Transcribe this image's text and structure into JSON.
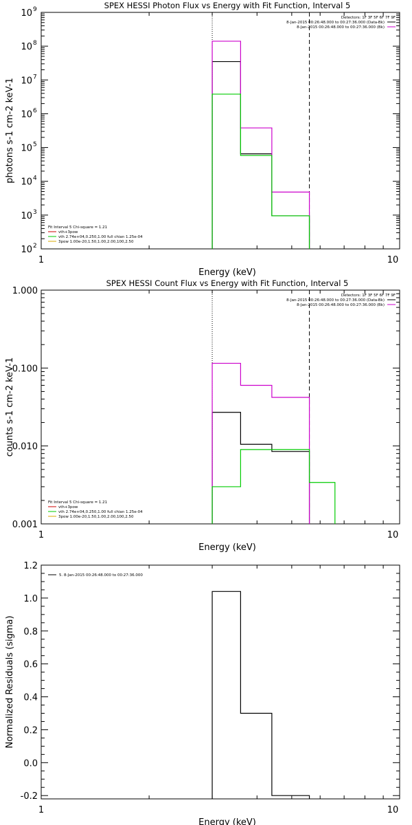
{
  "chart_data": [
    {
      "type": "line",
      "title": "SPEX HESSI Photon Flux vs Energy with Fit Function, Interval 5",
      "xlabel": "Energy (keV)",
      "ylabel": "photons s-1 cm-2 keV-1",
      "xscale": "log",
      "yscale": "log",
      "xlim": [
        1,
        10
      ],
      "ylim": [
        100,
        1000000000
      ],
      "x_ticks": [
        1,
        10
      ],
      "x_tick_labels": [
        "1",
        "10"
      ],
      "y_ticks": [
        100,
        1000,
        10000,
        100000,
        1000000,
        10000000,
        100000000,
        1000000000
      ],
      "y_tick_labels": [
        "10",
        "10",
        "10",
        "10",
        "10",
        "10",
        "10",
        "10"
      ],
      "y_tick_exps": [
        "2",
        "3",
        "4",
        "5",
        "6",
        "7",
        "8",
        "9"
      ],
      "vlines": [
        {
          "x": 3.0,
          "style": "dotted"
        },
        {
          "x": 5.6,
          "style": "dashed"
        }
      ],
      "series": [
        {
          "name": "8-Jan-2015 00:26:48.000 to 00:27:36.000 (Data-Bk)",
          "color": "#000000",
          "bin_edges": [
            3.0,
            3.6,
            4.4,
            5.6
          ],
          "values": [
            35000000,
            65000,
            950
          ]
        },
        {
          "name": "8-Jan-2015 00:26:48.000 to 00:27:36.000 (Bk)",
          "color": "#cc00cc",
          "bin_edges": [
            3.0,
            3.6,
            4.4,
            5.6
          ],
          "values": [
            140000000,
            380000,
            4800
          ]
        },
        {
          "name": "vth",
          "color": "#00cc00",
          "bin_edges": [
            3.0,
            3.6,
            4.4,
            5.6
          ],
          "values": [
            3800000,
            58000,
            950
          ]
        }
      ],
      "legend_tr": {
        "header": "Detectors: 1F 3F 5F 6F 7F 9F",
        "items": [
          "8-Jan-2015 00:26:48.000 to 00:27:36.000 (Data-Bk)",
          "8-Jan-2015 00:26:48.000 to 00:27:36.000 (Bk)"
        ]
      },
      "legend_bl": {
        "header": "Fit Interval 5   Chi-square = 1.21",
        "items": [
          {
            "label": "vth+3pow",
            "color": "#cc0000"
          },
          {
            "label": "vth 2.74e+04,0.250,1.00  full chian 1.25e-04",
            "color": "#00cc00"
          },
          {
            "label": "3pow 1.00e-20,1.50,1.00,2.00,100,2.50",
            "color": "#d8a800"
          }
        ]
      }
    },
    {
      "type": "line",
      "title": "SPEX HESSI Count Flux vs Energy with Fit Function, Interval 5",
      "xlabel": "Energy (keV)",
      "ylabel": "counts s-1 cm-2 keV-1",
      "xscale": "log",
      "yscale": "log",
      "xlim": [
        1,
        10
      ],
      "ylim": [
        0.001,
        1.0
      ],
      "x_ticks": [
        1,
        10
      ],
      "x_tick_labels": [
        "1",
        "10"
      ],
      "y_ticks": [
        0.001,
        0.01,
        0.1,
        1.0
      ],
      "y_tick_labels": [
        "0.001",
        "0.010",
        "0.100",
        "1.000"
      ],
      "vlines": [
        {
          "x": 3.0,
          "style": "dotted"
        },
        {
          "x": 5.6,
          "style": "dashed"
        }
      ],
      "series": [
        {
          "name": "8-Jan-2015 00:26:48.000 to 00:27:36.000 (Data-Bk)",
          "color": "#000000",
          "bin_edges": [
            3.0,
            3.6,
            4.4,
            5.6
          ],
          "values": [
            0.027,
            0.0105,
            0.0085
          ]
        },
        {
          "name": "8-Jan-2015 00:26:48.000 to 00:27:36.000 (Bk)",
          "color": "#cc00cc",
          "bin_edges": [
            3.0,
            3.6,
            4.4,
            5.6
          ],
          "values": [
            0.115,
            0.06,
            0.042
          ]
        },
        {
          "name": "vth",
          "color": "#00cc00",
          "bin_edges": [
            3.0,
            3.6,
            4.4,
            5.6,
            6.6
          ],
          "values": [
            0.003,
            0.009,
            0.009,
            0.0034
          ]
        }
      ],
      "legend_tr": {
        "header": "Detectors: 1F 3F 5F 6F 7F 9F",
        "items": [
          "8-Jan-2015 00:26:48.000 to 00:27:36.000 (Data-Bk)",
          "8-Jan-2015 00:26:48.000 to 00:27:36.000 (Bk)"
        ]
      },
      "legend_bl": {
        "header": "Fit Interval 5   Chi-square = 1.21",
        "items": [
          {
            "label": "vth+3pow",
            "color": "#cc0000"
          },
          {
            "label": "vth 2.74e+04,0.250,1.00  full chian 1.25e-04",
            "color": "#00cc00"
          },
          {
            "label": "3pow 1.00e-20,1.50,1.00,2.00,100,2.50",
            "color": "#d8a800"
          }
        ]
      }
    },
    {
      "type": "line",
      "title": "",
      "xlabel": "Energy (keV)",
      "ylabel": "Normalized Residuals (sigma)",
      "xscale": "log",
      "yscale": "linear",
      "xlim": [
        1,
        10
      ],
      "ylim": [
        -0.22,
        1.2
      ],
      "x_ticks": [
        1,
        10
      ],
      "x_tick_labels": [
        "1",
        "10"
      ],
      "y_ticks": [
        -0.2,
        0.0,
        0.2,
        0.4,
        0.6,
        0.8,
        1.0,
        1.2
      ],
      "y_tick_labels": [
        "-0.2",
        "0.0",
        "0.2",
        "0.4",
        "0.6",
        "0.8",
        "1.0",
        "1.2"
      ],
      "series": [
        {
          "name": "5. 8-Jan-2015 00:26:48.000 to 00:27:36.000",
          "color": "#000000",
          "bin_edges": [
            3.0,
            3.6,
            4.4,
            5.6
          ],
          "values": [
            1.04,
            0.3,
            -0.2
          ]
        }
      ],
      "legend_tl": {
        "items": [
          {
            "label": "5. 8-Jan-2015 00:26:48.000 to 00:27:36.000",
            "color": "#000000"
          }
        ]
      }
    }
  ]
}
